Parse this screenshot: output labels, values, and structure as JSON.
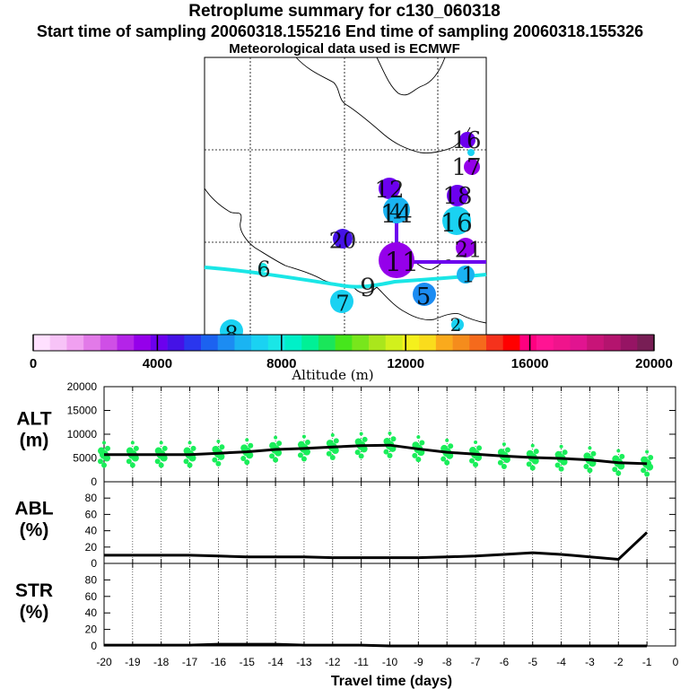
{
  "header": {
    "title": "Retroplume summary for c130_060318",
    "sampling": "Start time of sampling 20060318.155216     End time of sampling 20060318.155326",
    "met": "Meteorological data used is ECMWF"
  },
  "colorbar": {
    "ticks": [
      "0",
      "4000",
      "8000",
      "12000",
      "16000",
      "20000"
    ],
    "label": "Altitude (m)",
    "colors": [
      "#ffe0ff",
      "#f7c3f7",
      "#f0a0f0",
      "#e27ae8",
      "#cf4fe6",
      "#b424e8",
      "#9500ea",
      "#6c00ee",
      "#4512e6",
      "#2a36ee",
      "#1c62f0",
      "#1c8cf2",
      "#1ab4f2",
      "#1ad2f2",
      "#1ae6e6",
      "#00f0c8",
      "#00f096",
      "#1ae65a",
      "#46e61c",
      "#78e61c",
      "#aae61c",
      "#d2f01c",
      "#f5f01c",
      "#fadc1c",
      "#faaa1c",
      "#f58c1c",
      "#f56a1c",
      "#f5321c",
      "#ff0000",
      "#ff0080",
      "#ff1493",
      "#f0148c",
      "#e11490",
      "#c81478",
      "#b4146e",
      "#961464",
      "#781e55"
    ]
  },
  "map": {
    "labels": [
      "16",
      "17",
      "18",
      "12",
      "14",
      "16",
      "20",
      "11",
      "21",
      "6",
      "9",
      "1",
      "4",
      "7",
      "5",
      "8",
      "2"
    ]
  },
  "chart_data": [
    {
      "type": "line",
      "title": "ALT (m)",
      "ylabel_top": "ALT",
      "ylabel_bottom": "(m)",
      "ylim": [
        0,
        20000
      ],
      "yticks": [
        0,
        5000,
        10000,
        15000,
        20000
      ],
      "ytick_labels": [
        "0",
        "5000",
        "10000",
        "15000",
        "20000"
      ],
      "x": [
        -20,
        -19,
        -18,
        -17,
        -16,
        -15,
        -14,
        -13,
        -12,
        -11,
        -10,
        -9,
        -8,
        -7,
        -6,
        -5,
        -4,
        -3,
        -2,
        -1
      ],
      "values": [
        5700,
        5700,
        5700,
        5700,
        6000,
        6300,
        6800,
        7000,
        7300,
        7600,
        7700,
        6900,
        6200,
        5800,
        5400,
        5100,
        4900,
        4600,
        4000,
        3800
      ],
      "scatter_color": "#1aee5a"
    },
    {
      "type": "line",
      "title": "ABL (%)",
      "ylabel_top": "ABL",
      "ylabel_bottom": "(%)",
      "ylim": [
        0,
        100
      ],
      "yticks": [
        0,
        20,
        40,
        60,
        80
      ],
      "ytick_labels": [
        "0",
        "20",
        "40",
        "60",
        "80"
      ],
      "x": [
        -20,
        -19,
        -18,
        -17,
        -16,
        -15,
        -14,
        -13,
        -12,
        -11,
        -10,
        -9,
        -8,
        -7,
        -6,
        -5,
        -4,
        -3,
        -2,
        -1
      ],
      "values": [
        10,
        10,
        10,
        10,
        9,
        8,
        8,
        8,
        7,
        7,
        7,
        7,
        8,
        9,
        11,
        13,
        11,
        8,
        5,
        38
      ]
    },
    {
      "type": "line",
      "title": "STR (%)",
      "ylabel_top": "STR",
      "ylabel_bottom": "(%)",
      "ylim": [
        0,
        100
      ],
      "yticks": [
        0,
        20,
        40,
        60,
        80
      ],
      "ytick_labels": [
        "0",
        "20",
        "40",
        "60",
        "80"
      ],
      "x": [
        -20,
        -19,
        -18,
        -17,
        -16,
        -15,
        -14,
        -13,
        -12,
        -11,
        -10,
        -9,
        -8,
        -7,
        -6,
        -5,
        -4,
        -3,
        -2,
        -1
      ],
      "values": [
        1,
        1,
        1,
        1,
        2,
        2,
        2,
        1,
        1,
        1,
        0,
        0,
        0,
        0,
        0,
        0,
        0,
        0,
        0,
        0
      ],
      "xtick_labels": [
        "-20",
        "-19",
        "-18",
        "-17",
        "-16",
        "-15",
        "-14",
        "-13",
        "-12",
        "-11",
        "-10",
        "-9",
        "-8",
        "-7",
        "-6",
        "-5",
        "-4",
        "-3",
        "-2",
        "-1",
        "0"
      ],
      "xlabel": "Travel time (days)"
    }
  ]
}
